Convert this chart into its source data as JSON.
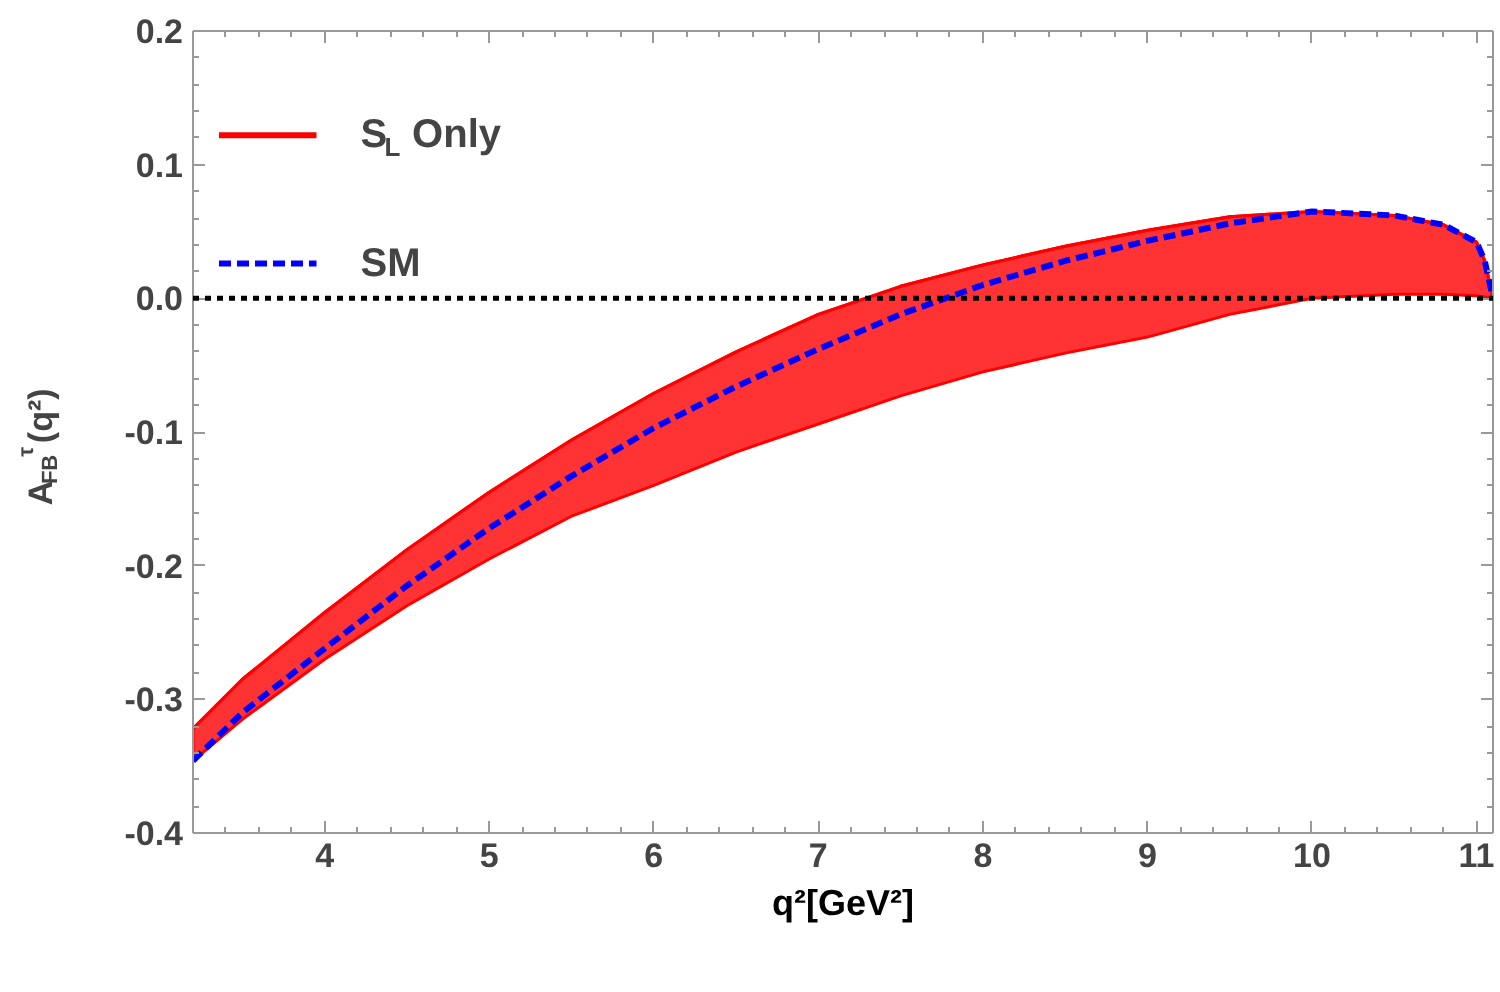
{
  "chart_data": {
    "type": "line",
    "xlabel": "q²[GeV²]",
    "ylabel": "A$_{FB}$$^{τ}$(q²)",
    "xlim": [
      3.2,
      11.1
    ],
    "xticks": [
      4,
      5,
      6,
      7,
      8,
      9,
      10,
      11
    ],
    "ylim": [
      -0.4,
      0.2
    ],
    "yticks": [
      {
        "value": -0.4,
        "label": "-0.4"
      },
      {
        "value": -0.3,
        "label": "-0.3"
      },
      {
        "value": -0.2,
        "label": "-0.2"
      },
      {
        "value": -0.1,
        "label": "-0.1"
      },
      {
        "value": 0,
        "label": "0.0"
      },
      {
        "value": 0.1,
        "label": "0.1"
      },
      {
        "value": 0.2,
        "label": "0.2"
      }
    ],
    "grid": false,
    "legend": "top left",
    "ref_lines": [
      {
        "axis": "y",
        "value": 0,
        "color": "#000000",
        "line_style": "dotted"
      }
    ],
    "series": [
      {
        "name": "S$_{L}$ Only",
        "color": "#ff0000",
        "x": [
          3.2,
          3.5,
          4,
          4.5,
          5,
          5.5,
          6,
          6.5,
          7,
          7.5,
          8,
          8.5,
          9,
          9.5,
          10,
          10.5,
          10.8,
          11,
          11.05,
          11.1
        ],
        "values": [
          -0.322,
          -0.285,
          -0.235,
          -0.188,
          -0.145,
          -0.106,
          -0.071,
          -0.04,
          -0.012,
          0.009,
          0.025,
          0.039,
          0.051,
          0.061,
          0.065,
          0.062,
          0.055,
          0.042,
          0.028,
          0.0
        ],
        "upper": [
          -0.322,
          -0.285,
          -0.235,
          -0.188,
          -0.145,
          -0.106,
          -0.071,
          -0.04,
          -0.012,
          0.009,
          0.025,
          0.039,
          0.051,
          0.061,
          0.065,
          0.062,
          0.055,
          0.042,
          0.028,
          0.0
        ],
        "lower": [
          -0.346,
          -0.315,
          -0.27,
          -0.23,
          -0.195,
          -0.163,
          -0.14,
          -0.115,
          -0.094,
          -0.073,
          -0.055,
          -0.041,
          -0.029,
          -0.012,
          0.0,
          0.003,
          0.003,
          0.002,
          0.001,
          0.0
        ]
      },
      {
        "name": "SM",
        "color": "#0000ff",
        "line_style": "dashed",
        "x": [
          3.2,
          3.5,
          4,
          4.5,
          5,
          5.5,
          6,
          6.5,
          7,
          7.5,
          8,
          8.5,
          9,
          9.5,
          10,
          10.5,
          10.8,
          11,
          11.05,
          11.1
        ],
        "values": [
          -0.346,
          -0.31,
          -0.262,
          -0.215,
          -0.172,
          -0.133,
          -0.097,
          -0.066,
          -0.038,
          -0.012,
          0.01,
          0.028,
          0.043,
          0.056,
          0.065,
          0.062,
          0.055,
          0.042,
          0.028,
          0.0
        ]
      }
    ]
  }
}
